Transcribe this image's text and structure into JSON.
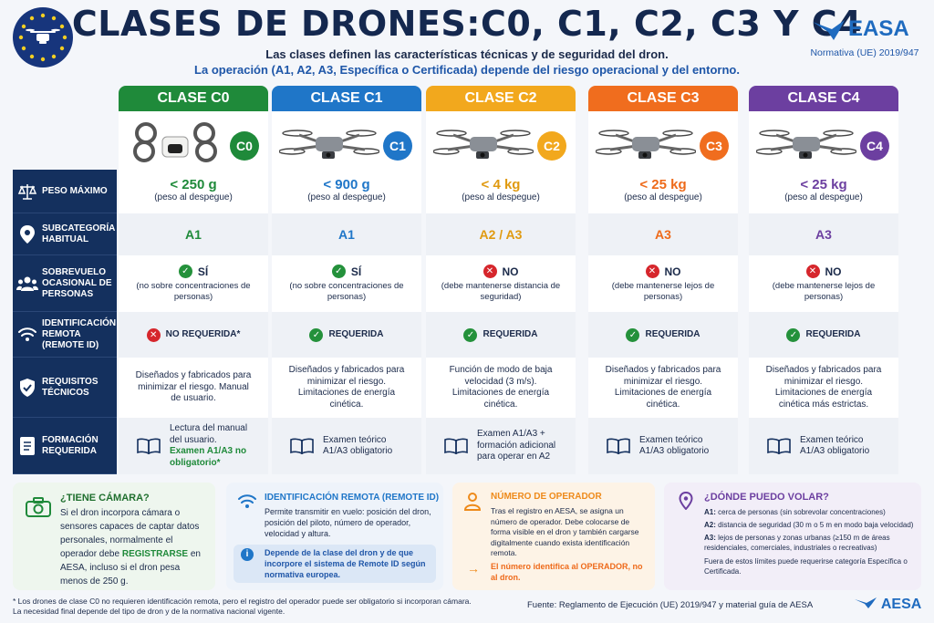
{
  "header": {
    "title": "CLASES DE DRONES:C0, C1, C2, C3 Y C4",
    "subtitle": "Las clases definen las características técnicas y de seguridad del dron.",
    "subtitle2": "La operación (A1, A2, A3, Específica o Certificada) depende del riesgo operacional y del entorno.",
    "brand": "EASA",
    "regulation": "Normativa (UE) 2019/947"
  },
  "classes": [
    {
      "name": "CLASE C0",
      "badge": "C0",
      "color": "#1f8a3a",
      "text_color": "#1f8a3a",
      "weight": "< 250 g",
      "weight_note": "(peso al despegue)",
      "subcat": "A1",
      "overflight": "SÍ",
      "overflight_ok": true,
      "overflight_note": "(no sobre concentraciones de personas)",
      "rid": "NO REQUERIDA*",
      "rid_ok": false,
      "tech": "Diseñados y fabricados para minimizar el riesgo. Manual de usuario.",
      "training": "Lectura del manual del usuario.",
      "training_extra": "Examen A1/A3 no obligatorio*"
    },
    {
      "name": "CLASE C1",
      "badge": "C1",
      "color": "#1f76c8",
      "text_color": "#1f76c8",
      "weight": "< 900 g",
      "weight_note": "(peso al despegue)",
      "subcat": "A1",
      "overflight": "SÍ",
      "overflight_ok": true,
      "overflight_note": "(no sobre concentraciones de personas)",
      "rid": "REQUERIDA",
      "rid_ok": true,
      "tech": "Diseñados y fabricados para minimizar el riesgo. Limitaciones de energía cinética.",
      "training": "Examen teórico A1/A3 obligatorio",
      "training_extra": ""
    },
    {
      "name": "CLASE C2",
      "badge": "C2",
      "color": "#f2a81d",
      "text_color": "#e09a10",
      "weight": "< 4 kg",
      "weight_note": "(peso al despegue)",
      "subcat": "A2 / A3",
      "overflight": "NO",
      "overflight_ok": false,
      "overflight_note": "(debe mantenerse distancia de seguridad)",
      "rid": "REQUERIDA",
      "rid_ok": true,
      "tech": "Función de modo de baja velocidad (3 m/s). Limitaciones de energía cinética.",
      "training": "Examen A1/A3 + formación adicional para operar en A2",
      "training_extra": ""
    },
    {
      "name": "CLASE C3",
      "badge": "C3",
      "color": "#f06d1e",
      "text_color": "#ee6a1a",
      "weight": "< 25 kg",
      "weight_note": "(peso al despegue)",
      "subcat": "A3",
      "overflight": "NO",
      "overflight_ok": false,
      "overflight_note": "(debe mantenerse lejos de personas)",
      "rid": "REQUERIDA",
      "rid_ok": true,
      "tech": "Diseñados y fabricados para minimizar el riesgo. Limitaciones de energía cinética.",
      "training": "Examen teórico A1/A3 obligatorio",
      "training_extra": ""
    },
    {
      "name": "CLASE C4",
      "badge": "C4",
      "color": "#6c3fa0",
      "text_color": "#6c3fa0",
      "weight": "< 25 kg",
      "weight_note": "(peso al despegue)",
      "subcat": "A3",
      "overflight": "NO",
      "overflight_ok": false,
      "overflight_note": "(debe mantenerse lejos de personas)",
      "rid": "REQUERIDA",
      "rid_ok": true,
      "tech": "Diseñados y fabricados para minimizar el riesgo. Limitaciones de energía cinética más estrictas.",
      "training": "Examen teórico A1/A3 obligatorio",
      "training_extra": ""
    }
  ],
  "rows": [
    {
      "label": "PESO MÁXIMO",
      "icon": "scale-icon"
    },
    {
      "label": "SUBCATEGORÍA HABITUAL",
      "icon": "location-pin-icon"
    },
    {
      "label": "SOBREVUELO OCASIONAL DE PERSONAS",
      "icon": "people-icon"
    },
    {
      "label": "IDENTIFICACIÓN REMOTA (REMOTE ID)",
      "icon": "wifi-icon"
    },
    {
      "label": "REQUISITOS TÉCNICOS",
      "icon": "shield-icon"
    },
    {
      "label": "FORMACIÓN REQUERIDA",
      "icon": "document-icon"
    }
  ],
  "boxes": {
    "camera": {
      "title": "¿TIENE CÁMARA?",
      "text1": "Si el dron incorpora cámara o sensores capaces de captar datos personales, normalmente el operador debe ",
      "highlight": "REGISTRARSE",
      "text2": " en AESA, incluso si el dron pesa menos de 250 g."
    },
    "remote_id": {
      "title": "IDENTIFICACIÓN REMOTA (REMOTE ID)",
      "text": "Permite transmitir en vuelo: posición del dron, posición del piloto, número de operador, velocidad y altura.",
      "note": "Depende de la clase del dron y de que incorpore el sistema de Remote ID según normativa europea."
    },
    "operator": {
      "title": "NÚMERO DE OPERADOR",
      "text": "Tras el registro en AESA, se asigna un número de operador. Debe colocarse de forma visible en el dron y también cargarse digitalmente cuando exista identificación remota.",
      "note": "El número identifica al OPERADOR, no al dron."
    },
    "fly": {
      "title": "¿DÓNDE PUEDO VOLAR?",
      "a1_label": "A1:",
      "a1": " cerca de personas (sin sobrevolar concentraciones)",
      "a2_label": "A2:",
      "a2": " distancia de seguridad (30 m o 5 m en modo baja velocidad)",
      "a3_label": "A3:",
      "a3": " lejos de personas y zonas urbanas (≥150 m de áreas residenciales, comerciales, industriales o recreativas)",
      "note": "Fuera de estos límites puede requerirse categoría Específica o Certificada."
    }
  },
  "footer": {
    "note1": "* Los drones de clase C0 no requieren identificación remota, pero el registro del operador puede ser obligatorio si incorporan cámara.",
    "note2": "La necesidad final depende del tipo de dron y de la normativa nacional vigente.",
    "source": "Fuente: Reglamento de Ejecución (UE) 2019/947 y material guía de AESA",
    "brand": "AESA"
  }
}
